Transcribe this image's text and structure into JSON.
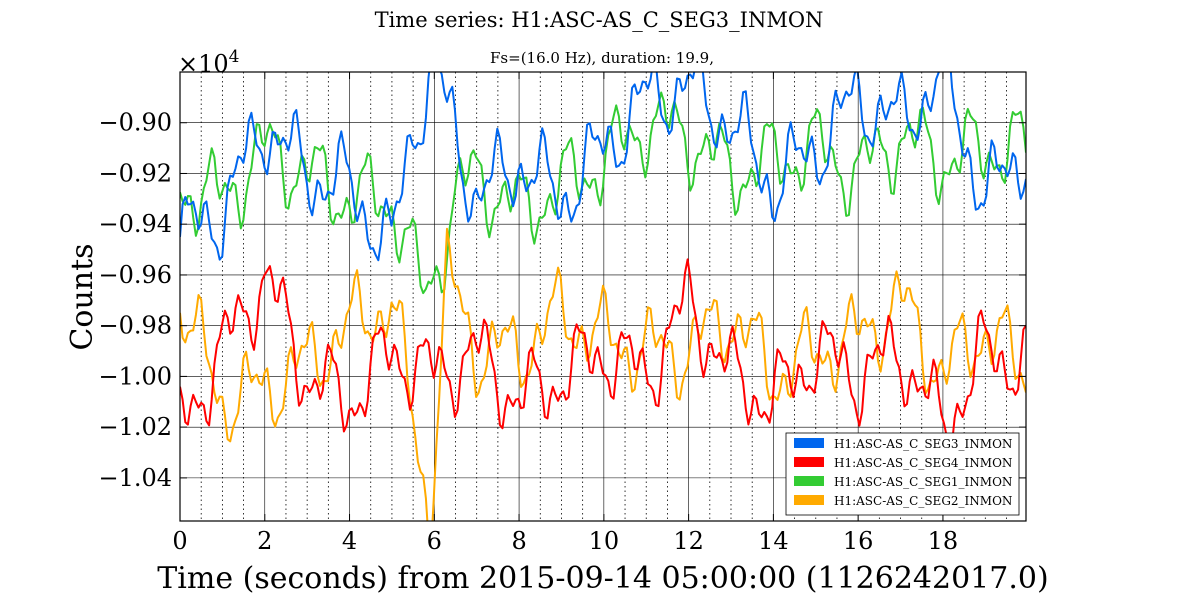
{
  "chart_data": {
    "type": "line",
    "title": "Time series:  H1:ASC-AS_C_SEG3_INMON",
    "subtitle": "Fs=(16.0 Hz), duration: 19.9,",
    "xlabel": "Time (seconds) from 2015-09-14 05:00:00 (1126242017.0)",
    "ylabel": "Counts",
    "scale_label": "×10",
    "scale_exponent": "4",
    "xlim": [
      0,
      19.96
    ],
    "ylim": [
      -1.057,
      -0.88
    ],
    "x_ticks": [
      0,
      2,
      4,
      6,
      8,
      10,
      12,
      14,
      16,
      18
    ],
    "x_tick_labels": [
      "0",
      "2",
      "4",
      "6",
      "8",
      "10",
      "12",
      "14",
      "16",
      "18"
    ],
    "y_ticks": [
      -0.9,
      -0.92,
      -0.94,
      -0.96,
      -0.98,
      -1.0,
      -1.02,
      -1.04
    ],
    "y_tick_labels": [
      "−0.90",
      "−0.92",
      "−0.94",
      "−0.96",
      "−0.98",
      "−1.00",
      "−1.02",
      "−1.04"
    ],
    "grid": {
      "major": true,
      "minor_x_dotted": true
    },
    "legend_position": "bottom-right",
    "series": [
      {
        "name": "H1:ASC-AS_C_SEG3_INMON",
        "color": "#0066ee",
        "x": [
          0,
          1,
          2,
          3,
          4,
          5,
          5.5,
          6,
          7,
          8,
          9,
          10,
          11,
          12,
          13,
          14,
          15,
          16,
          17,
          18,
          19,
          19.96
        ],
        "values": [
          -0.945,
          -0.935,
          -0.9,
          -0.92,
          -0.925,
          -0.95,
          -0.9,
          -0.88,
          -0.93,
          -0.915,
          -0.93,
          -0.91,
          -0.89,
          -0.885,
          -0.9,
          -0.925,
          -0.91,
          -0.89,
          -0.9,
          -0.88,
          -0.93,
          -0.91
        ]
      },
      {
        "name": "H1:ASC-AS_C_SEG4_INMON",
        "color": "#ff0000",
        "x": [
          0,
          1,
          2,
          3,
          4,
          5,
          6,
          7,
          8,
          9,
          10,
          11,
          12,
          13,
          14,
          15,
          16,
          17,
          18,
          19,
          19.96
        ],
        "values": [
          -1.02,
          -0.99,
          -0.96,
          -1.0,
          -1.01,
          -0.99,
          -1.0,
          -0.99,
          -1.01,
          -1.0,
          -0.99,
          -1.0,
          -0.97,
          -1.0,
          -1.01,
          -0.99,
          -1.0,
          -0.99,
          -1.02,
          -0.99,
          -0.995
        ]
      },
      {
        "name": "H1:ASC-AS_C_SEG1_INMON",
        "color": "#33cc33",
        "x": [
          0,
          1,
          2,
          3,
          4,
          5,
          5.8,
          6.5,
          7,
          8,
          9,
          10,
          11,
          12,
          13,
          14,
          15,
          16,
          17,
          18,
          19,
          19.96
        ],
        "values": [
          -0.925,
          -0.93,
          -0.91,
          -0.92,
          -0.93,
          -0.93,
          -0.97,
          -0.93,
          -0.92,
          -0.935,
          -0.925,
          -0.915,
          -0.9,
          -0.905,
          -0.92,
          -0.915,
          -0.91,
          -0.92,
          -0.905,
          -0.915,
          -0.91,
          -0.91
        ]
      },
      {
        "name": "H1:ASC-AS_C_SEG2_INMON",
        "color": "#ffaa00",
        "x": [
          0,
          0.5,
          1,
          2,
          3,
          4,
          5,
          5.9,
          6.3,
          7,
          8,
          9,
          10,
          11,
          12,
          13,
          14,
          15,
          16,
          17,
          18,
          19,
          19.96
        ],
        "values": [
          -0.97,
          -0.99,
          -1.01,
          -1.005,
          -0.995,
          -0.98,
          -0.97,
          -1.055,
          -0.96,
          -0.99,
          -0.99,
          -0.975,
          -0.985,
          -0.99,
          -0.99,
          -0.975,
          -1.0,
          -0.99,
          -0.985,
          -0.97,
          -1.0,
          -0.98,
          -1.0
        ]
      }
    ]
  }
}
